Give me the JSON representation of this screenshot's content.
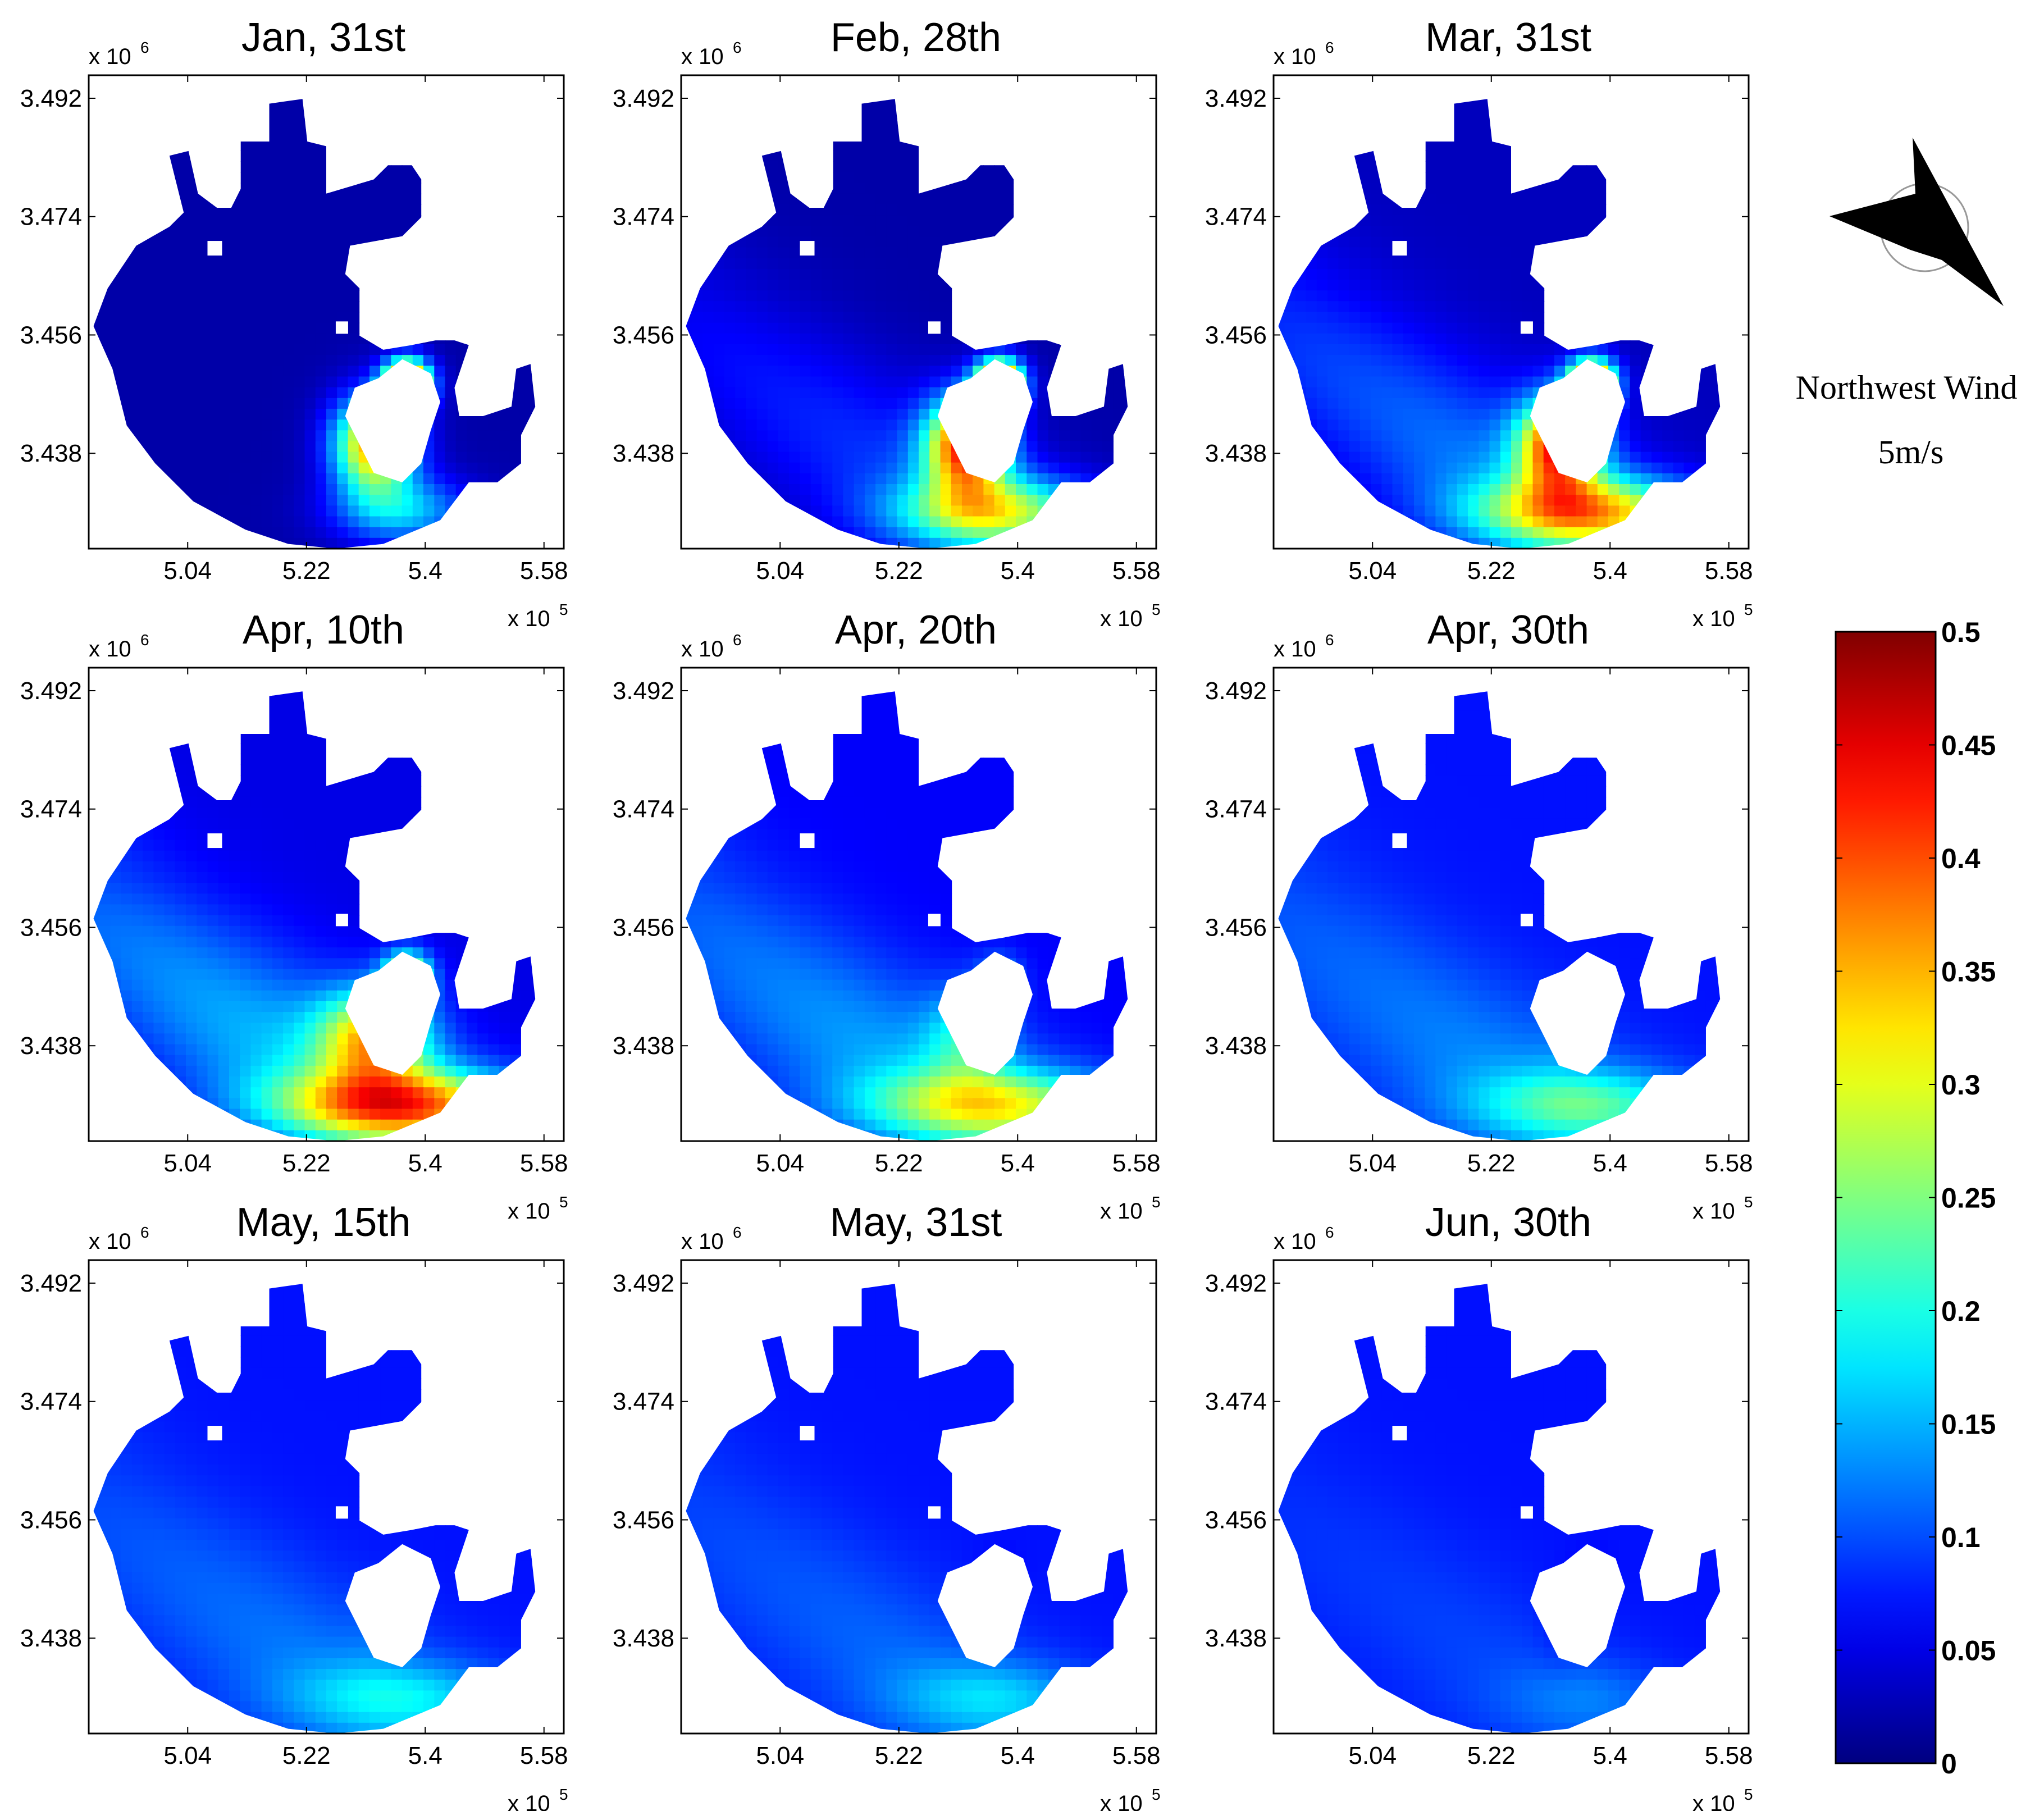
{
  "chart_data": {
    "type": "heatmap",
    "panels": [
      {
        "title": "Jan, 31st",
        "stage": 0
      },
      {
        "title": "Feb, 28th",
        "stage": 1
      },
      {
        "title": "Mar, 31st",
        "stage": 2
      },
      {
        "title": "Apr, 10th",
        "stage": 3
      },
      {
        "title": "Apr, 20th",
        "stage": 4
      },
      {
        "title": "Apr, 30th",
        "stage": 5
      },
      {
        "title": "May, 15th",
        "stage": 6
      },
      {
        "title": "May, 31st",
        "stage": 7
      },
      {
        "title": "Jun, 30th",
        "stage": 8
      }
    ],
    "x_ticks": [
      "5.04",
      "5.22",
      "5.4",
      "5.58"
    ],
    "x_tick_values": [
      5.04,
      5.22,
      5.4,
      5.58
    ],
    "x_exponent": "x 10",
    "x_exponent_power": "5",
    "xlim": [
      4.89,
      5.61
    ],
    "y_ticks": [
      "3.492",
      "3.474",
      "3.456",
      "3.438"
    ],
    "y_tick_values": [
      3.492,
      3.474,
      3.456,
      3.438
    ],
    "y_exponent": "x 10",
    "y_exponent_power": "6",
    "ylim": [
      3.4235,
      3.4955
    ],
    "colorbar": {
      "range": [
        0,
        0.5
      ],
      "ticks": [
        "0.5",
        "0.45",
        "0.4",
        "0.35",
        "0.3",
        "0.25",
        "0.2",
        "0.15",
        "0.1",
        "0.05",
        "0"
      ],
      "tick_values": [
        0.5,
        0.45,
        0.4,
        0.35,
        0.3,
        0.25,
        0.2,
        0.15,
        0.1,
        0.05,
        0
      ],
      "colormap": "jet"
    },
    "wind": {
      "label_line1": "Northwest Wind",
      "label_line2": "5m/s",
      "direction": "northwest"
    }
  }
}
